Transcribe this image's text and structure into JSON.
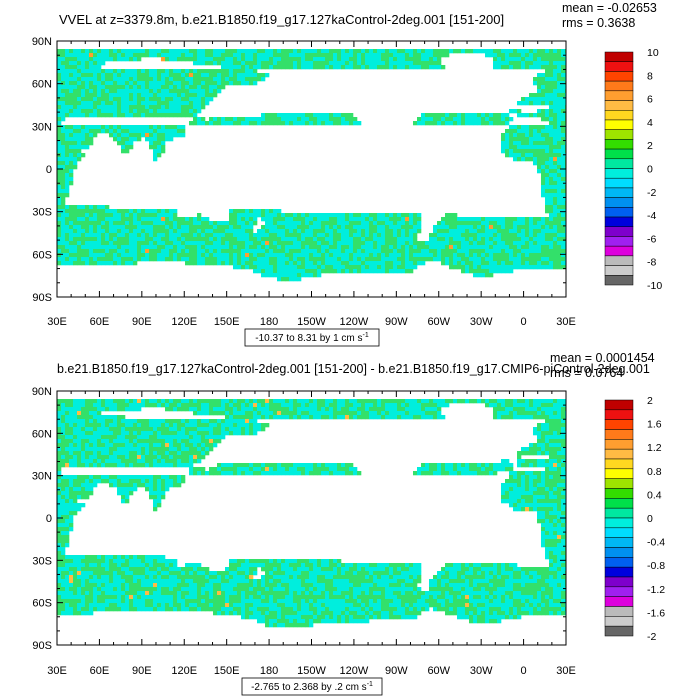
{
  "panels": [
    {
      "title": "VVEL at z=3379.8m, b.e21.B1850.f19_g17.127kaControl-2deg.001 [151-200]",
      "stats": {
        "mean": "mean = -0.02653",
        "rms": "rms = 0.3638"
      },
      "lat_ticks": [
        "90N",
        "60N",
        "30N",
        "0",
        "30S",
        "60S",
        "90S"
      ],
      "lon_ticks": [
        "30E",
        "60E",
        "90E",
        "120E",
        "150E",
        "180",
        "150W",
        "120W",
        "90W",
        "60W",
        "30W",
        "0",
        "30E"
      ],
      "range_label": "-10.37 to 8.31 by 1 cm s",
      "range_unit_exp": "-1",
      "colorbar": {
        "labels": [
          "10",
          "8",
          "6",
          "4",
          "2",
          "0",
          "-2",
          "-4",
          "-6",
          "-8",
          "-10"
        ],
        "colors": [
          "#c00000",
          "#ee1111",
          "#ff4400",
          "#ff7a1a",
          "#ff9e30",
          "#ffbb44",
          "#ffd820",
          "#ffff00",
          "#9ee400",
          "#33dd00",
          "#00e04a",
          "#00e8a0",
          "#00eedd",
          "#00ddff",
          "#00b8f5",
          "#0090f0",
          "#0060f0",
          "#0000dd",
          "#7e00cc",
          "#a020f0",
          "#dd00dd",
          "#bbbbbb",
          "#cccccc",
          "#666666"
        ]
      }
    },
    {
      "title": "b.e21.B1850.f19_g17.127kaControl-2deg.001 [151-200] - b.e21.B1850.f19_g17.CMIP6-piControl-2deg.001",
      "stats": {
        "mean": "mean = 0.0001454",
        "rms": "rms = 0.0764"
      },
      "lat_ticks": [
        "90N",
        "60N",
        "30N",
        "0",
        "30S",
        "60S",
        "90S"
      ],
      "lon_ticks": [
        "30E",
        "60E",
        "90E",
        "120E",
        "150E",
        "180",
        "150W",
        "120W",
        "90W",
        "60W",
        "30W",
        "0",
        "30E"
      ],
      "range_label": "-2.765 to 2.368 by .2 cm s",
      "range_unit_exp": "-1",
      "colorbar": {
        "labels": [
          "2",
          "1.6",
          "1.2",
          "0.8",
          "0.4",
          "0",
          "-0.4",
          "-0.8",
          "-1.2",
          "-1.6",
          "-2"
        ],
        "colors": [
          "#c00000",
          "#ee1111",
          "#ff4400",
          "#ff7a1a",
          "#ff9e30",
          "#ffbb44",
          "#ffd820",
          "#ffff00",
          "#9ee400",
          "#33dd00",
          "#00e04a",
          "#00e8a0",
          "#00eedd",
          "#00ddff",
          "#00b8f5",
          "#0090f0",
          "#0060f0",
          "#0000dd",
          "#7e00cc",
          "#a020f0",
          "#dd00dd",
          "#bbbbbb",
          "#cccccc",
          "#666666"
        ]
      }
    }
  ],
  "colors": {
    "field_green": "#33e06a",
    "field_cyan": "#00eedd",
    "frame": "#000000"
  }
}
